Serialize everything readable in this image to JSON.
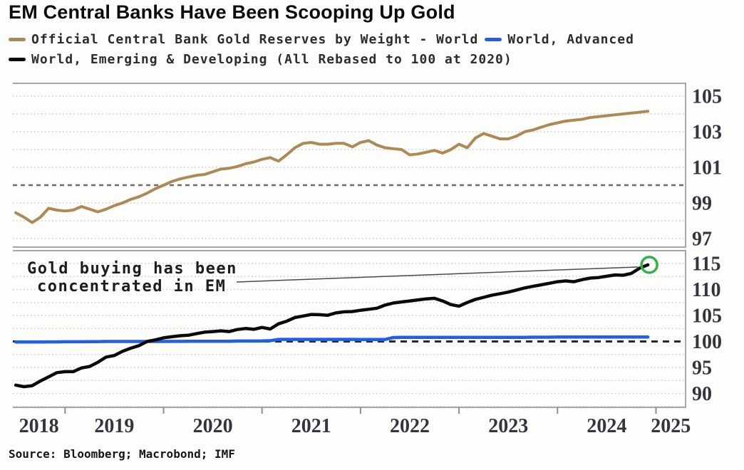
{
  "title": "EM Central Banks Have Been Scooping Up Gold",
  "source": "Source: Bloomberg; Macrobond; IMF",
  "colors": {
    "gold_line": "#ad8a55",
    "advanced_line": "#2160e4",
    "emerging_line": "#0a0a0a",
    "end_marker_green": "#2eb44b"
  },
  "legend": {
    "items": [
      {
        "label": "Official Central Bank Gold Reserves by Weight - World",
        "color": "#ad8a55"
      },
      {
        "label": "World, Advanced",
        "color": "#2160e4"
      },
      {
        "label": "World, Emerging & Developing (All Rebased to 100 at 2020)",
        "color": "#0a0a0a"
      }
    ]
  },
  "chart_data": {
    "type": "line",
    "title": "EM Central Banks Have Been Scooping Up Gold",
    "legend_position": "top",
    "x_domain": [
      2018.47,
      2025.3
    ],
    "x_year_ticks": [
      2019,
      2020,
      2021,
      2022,
      2023,
      2024,
      2025
    ],
    "x_axis_labels": [
      "2018",
      "2019",
      "2020",
      "2021",
      "2022",
      "2023",
      "2024",
      "2025"
    ],
    "x": [
      2018.5,
      2018.583,
      2018.667,
      2018.75,
      2018.833,
      2018.917,
      2019.0,
      2019.083,
      2019.167,
      2019.25,
      2019.333,
      2019.417,
      2019.5,
      2019.583,
      2019.667,
      2019.75,
      2019.833,
      2019.917,
      2020.0,
      2020.083,
      2020.167,
      2020.25,
      2020.333,
      2020.417,
      2020.5,
      2020.583,
      2020.667,
      2020.75,
      2020.833,
      2020.917,
      2021.0,
      2021.083,
      2021.167,
      2021.25,
      2021.333,
      2021.417,
      2021.5,
      2021.583,
      2021.667,
      2021.75,
      2021.833,
      2021.917,
      2022.0,
      2022.083,
      2022.167,
      2022.25,
      2022.333,
      2022.417,
      2022.5,
      2022.583,
      2022.667,
      2022.75,
      2022.833,
      2022.917,
      2023.0,
      2023.083,
      2023.167,
      2023.25,
      2023.333,
      2023.417,
      2023.5,
      2023.583,
      2023.667,
      2023.75,
      2023.833,
      2023.917,
      2024.0,
      2024.083,
      2024.167,
      2024.25,
      2024.333,
      2024.417,
      2024.5,
      2024.583,
      2024.667,
      2024.75,
      2024.833,
      2024.917
    ],
    "panels": [
      {
        "id": "gold-reserves-world",
        "ylim": [
          96.52,
          105.72
        ],
        "gridlines": [
          97,
          98,
          99,
          101,
          102,
          103,
          104,
          105
        ],
        "yticks": [
          97,
          99,
          101,
          103,
          105
        ],
        "ref_value": 100,
        "series": [
          {
            "id": "world",
            "name": "Official Central Bank Gold Reserves by Weight - World",
            "color": "#ad8a55",
            "width": 4,
            "values": [
              98.45,
              98.2,
              97.9,
              98.2,
              98.7,
              98.6,
              98.55,
              98.6,
              98.8,
              98.65,
              98.5,
              98.65,
              98.85,
              99.0,
              99.2,
              99.35,
              99.55,
              99.8,
              100.0,
              100.2,
              100.35,
              100.45,
              100.55,
              100.6,
              100.75,
              100.9,
              100.95,
              101.05,
              101.2,
              101.3,
              101.45,
              101.55,
              101.35,
              101.7,
              102.1,
              102.35,
              102.4,
              102.3,
              102.3,
              102.35,
              102.35,
              102.15,
              102.4,
              102.5,
              102.25,
              102.1,
              102.05,
              102.0,
              101.7,
              101.75,
              101.85,
              101.95,
              101.8,
              102.0,
              102.3,
              102.1,
              102.65,
              102.9,
              102.75,
              102.6,
              102.6,
              102.75,
              103.0,
              103.1,
              103.25,
              103.4,
              103.5,
              103.6,
              103.65,
              103.7,
              103.8,
              103.85,
              103.9,
              103.95,
              104.0,
              104.05,
              104.1,
              104.15
            ]
          }
        ]
      },
      {
        "id": "advanced-vs-emerging",
        "ylim": [
          87.33,
          117.47
        ],
        "gridlines": [
          87.5,
          90,
          92.5,
          95,
          97.5,
          102.5,
          105,
          107.5,
          110,
          112.5,
          115
        ],
        "yticks": [
          90,
          95,
          100,
          105,
          110,
          115
        ],
        "ref_value": 100,
        "annotation": {
          "lines": [
            "Gold buying has been",
            "concentrated in EM"
          ]
        },
        "end_marker": {
          "series": "emerging",
          "color": "#2eb44b"
        },
        "series": [
          {
            "id": "advanced",
            "name": "World, Advanced",
            "color": "#2160e4",
            "width": 4.5,
            "values": [
              99.9,
              99.9,
              99.9,
              99.9,
              99.92,
              99.92,
              99.95,
              99.95,
              99.95,
              99.97,
              99.97,
              100.0,
              100.0,
              100.0,
              100.0,
              100.0,
              100.0,
              100.0,
              100.0,
              100.02,
              100.02,
              100.05,
              100.05,
              100.05,
              100.05,
              100.05,
              100.05,
              100.08,
              100.08,
              100.08,
              100.1,
              100.15,
              100.4,
              100.4,
              100.4,
              100.4,
              100.4,
              100.4,
              100.4,
              100.4,
              100.4,
              100.4,
              100.38,
              100.38,
              100.38,
              100.38,
              100.75,
              100.78,
              100.8,
              100.8,
              100.8,
              100.8,
              100.8,
              100.8,
              100.8,
              100.8,
              100.8,
              100.8,
              100.8,
              100.8,
              100.8,
              100.8,
              100.8,
              100.82,
              100.82,
              100.82,
              100.85,
              100.85,
              100.85,
              100.85,
              100.85,
              100.85,
              100.85,
              100.85,
              100.85,
              100.85,
              100.85,
              100.85
            ]
          },
          {
            "id": "emerging",
            "name": "World, Emerging & Developing",
            "color": "#0a0a0a",
            "width": 4.5,
            "values": [
              91.6,
              91.3,
              91.5,
              92.4,
              93.2,
              94.0,
              94.2,
              94.2,
              94.9,
              95.2,
              96.0,
              97.0,
              97.3,
              98.1,
              98.7,
              99.2,
              100.0,
              100.3,
              100.7,
              100.9,
              101.1,
              101.2,
              101.5,
              101.8,
              101.9,
              102.05,
              101.9,
              102.3,
              102.5,
              102.35,
              102.7,
              102.4,
              103.4,
              103.9,
              104.6,
              104.9,
              105.2,
              105.15,
              105.05,
              105.5,
              105.7,
              105.75,
              106.0,
              106.2,
              106.4,
              107.0,
              107.4,
              107.6,
              107.8,
              108.0,
              108.2,
              108.3,
              107.8,
              107.1,
              106.8,
              107.5,
              108.1,
              108.5,
              108.9,
              109.2,
              109.5,
              109.9,
              110.3,
              110.6,
              110.9,
              111.2,
              111.5,
              111.65,
              111.5,
              111.9,
              112.2,
              112.3,
              112.55,
              112.8,
              112.75,
              113.1,
              114.1,
              114.75
            ]
          }
        ]
      }
    ]
  }
}
